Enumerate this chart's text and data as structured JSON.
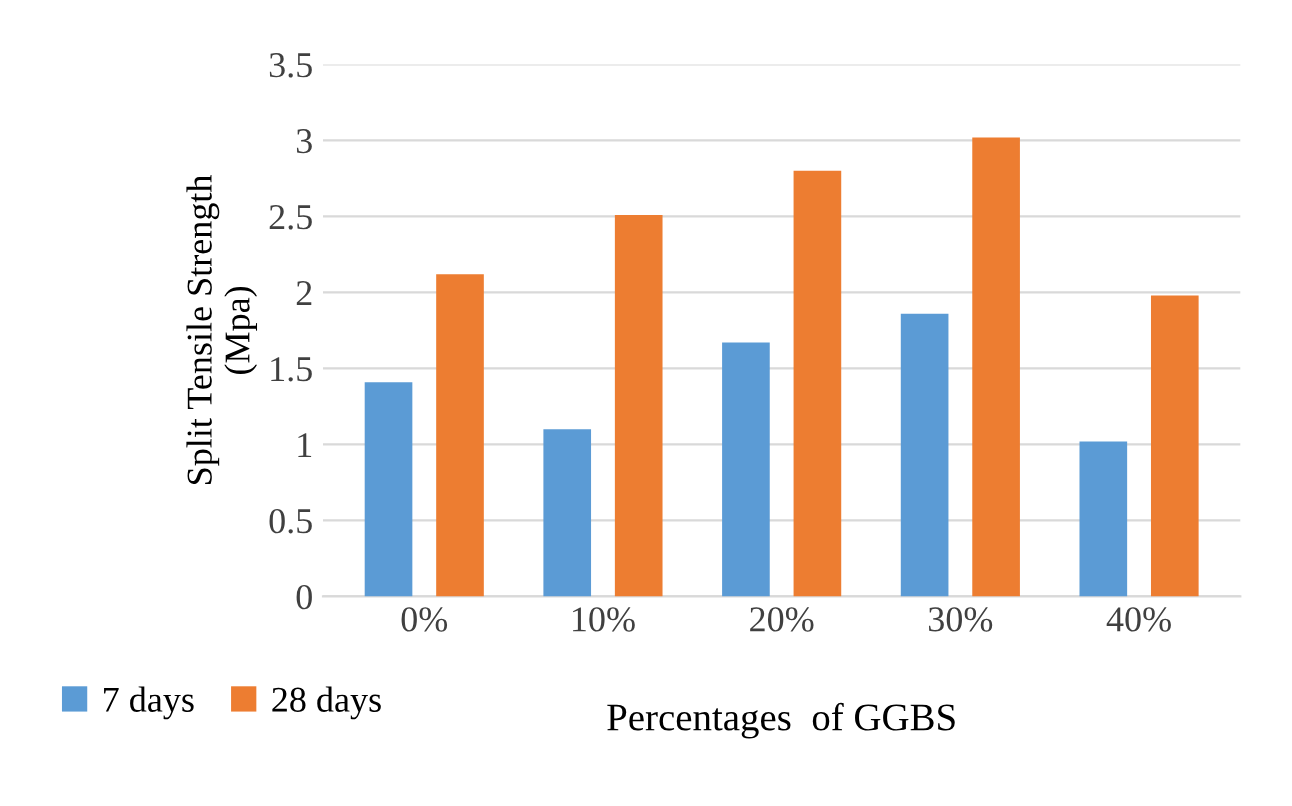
{
  "chart_data": {
    "type": "bar",
    "xlabel": "Percentages  of GGBS",
    "ylabel": "Split Tensile Strength\n(Mpa)",
    "categories": [
      "0%",
      "10%",
      "20%",
      "30%",
      "40%"
    ],
    "series": [
      {
        "name": "7 days",
        "color": "#5b9bd5",
        "values": [
          1.41,
          1.1,
          1.67,
          1.86,
          1.02
        ]
      },
      {
        "name": "28 days",
        "color": "#ed7d31",
        "values": [
          2.12,
          2.51,
          2.8,
          3.02,
          1.98
        ]
      }
    ],
    "ylim": [
      0,
      3.5
    ],
    "yticks": [
      0,
      0.5,
      1,
      1.5,
      2,
      2.5,
      3,
      3.5
    ],
    "grid": "y",
    "legend": "bottom left"
  }
}
